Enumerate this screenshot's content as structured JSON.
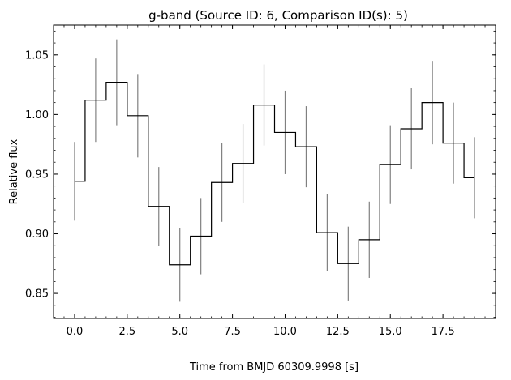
{
  "chart_data": {
    "type": "line",
    "style": "step-with-errorbars",
    "title": "g-band (Source ID: 6, Comparison ID(s): 5)",
    "xlabel": "Time from BMJD 60309.9998 [s]",
    "ylabel": "Relative flux",
    "xlim": [
      -1.0,
      20.0
    ],
    "ylim": [
      0.829,
      1.075
    ],
    "xticks": [
      0.0,
      2.5,
      5.0,
      7.5,
      10.0,
      12.5,
      15.0,
      17.5
    ],
    "xtick_labels": [
      "0.0",
      "2.5",
      "5.0",
      "7.5",
      "10.0",
      "12.5",
      "15.0",
      "17.5"
    ],
    "yticks": [
      0.85,
      0.9,
      0.95,
      1.0,
      1.05
    ],
    "ytick_labels": [
      "0.85",
      "0.90",
      "0.95",
      "1.00",
      "1.05"
    ],
    "grid": false,
    "step_color": "#000000",
    "errorbar_color": "#808080",
    "x": [
      0,
      1,
      2,
      3,
      4,
      5,
      6,
      7,
      8,
      9,
      10,
      11,
      12,
      13,
      14,
      15,
      16,
      17,
      18,
      19
    ],
    "y": [
      0.944,
      1.012,
      1.027,
      0.999,
      0.923,
      0.874,
      0.898,
      0.943,
      0.959,
      1.008,
      0.985,
      0.973,
      0.901,
      0.875,
      0.895,
      0.958,
      0.988,
      1.01,
      0.976,
      0.947
    ],
    "yerr": [
      0.033,
      0.035,
      0.036,
      0.035,
      0.033,
      0.031,
      0.032,
      0.033,
      0.033,
      0.034,
      0.035,
      0.034,
      0.032,
      0.031,
      0.032,
      0.033,
      0.034,
      0.035,
      0.034,
      0.034
    ]
  }
}
